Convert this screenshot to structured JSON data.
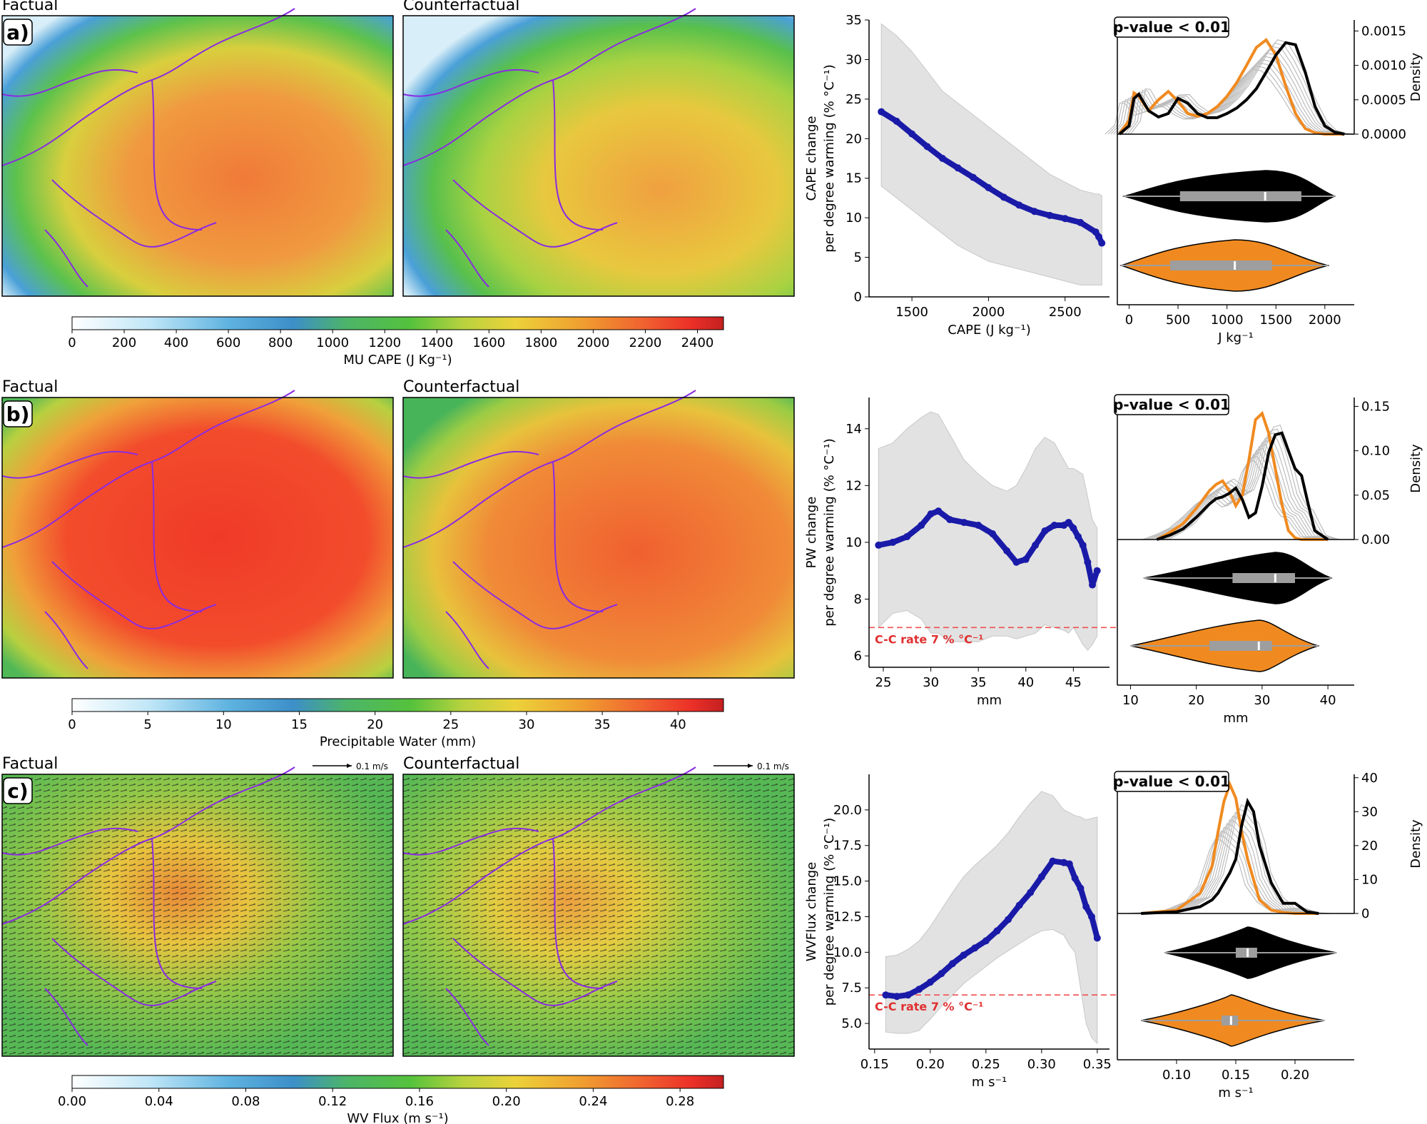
{
  "panels": [
    {
      "id": "a",
      "label": "a)",
      "map_titles": [
        "Factual",
        "Counterfactual"
      ],
      "colorbar": {
        "label": "MU CAPE (J Kg⁻¹)",
        "ticks": [
          "0",
          "200",
          "400",
          "600",
          "800",
          "1000",
          "1200",
          "1400",
          "1600",
          "1800",
          "2000",
          "2200",
          "2400"
        ],
        "range": [
          0,
          2500
        ]
      },
      "line_chart": {
        "type": "scatter",
        "ylabel_1": "CAPE change",
        "ylabel_2": "per degree warming (% °C⁻¹)",
        "xlabel": "CAPE (J kg⁻¹)",
        "xticks": [
          "1500",
          "2000",
          "2500"
        ],
        "yticks": [
          "0",
          "5",
          "10",
          "15",
          "20",
          "25",
          "30",
          "35"
        ],
        "xlim": [
          1220,
          2790
        ],
        "ylim": [
          0,
          35
        ],
        "x": [
          1300,
          1400,
          1500,
          1600,
          1700,
          1800,
          1900,
          2000,
          2100,
          2200,
          2300,
          2400,
          2500,
          2600,
          2700,
          2720,
          2740
        ],
        "y": [
          23.4,
          22.2,
          20.6,
          19.0,
          17.5,
          16.3,
          15.1,
          13.8,
          12.6,
          11.6,
          10.8,
          10.3,
          9.9,
          9.4,
          8.2,
          7.6,
          6.8
        ],
        "band_upper": [
          34.5,
          33.0,
          31.0,
          28.5,
          26.0,
          24.5,
          23.0,
          21.5,
          20.0,
          18.5,
          17.0,
          15.5,
          14.5,
          13.5,
          13.0,
          13.0,
          12.8
        ],
        "band_lower": [
          14.0,
          12.5,
          11.0,
          9.5,
          8.0,
          6.5,
          5.5,
          4.5,
          4.0,
          3.5,
          3.0,
          2.5,
          2.0,
          1.5,
          1.5,
          1.5,
          1.5
        ],
        "cc_line": null,
        "cc_label": ""
      },
      "density_chart": {
        "type": "line",
        "pvalue_label": "p-value < 0.01",
        "ylabel": "Density",
        "xlabel": "J kg⁻¹",
        "xticks": [
          "0",
          "500",
          "1000",
          "1500",
          "2000"
        ],
        "yticks": [
          "0.0000",
          "0.0005",
          "0.0010",
          "0.0015"
        ],
        "xlim": [
          -120,
          2300
        ],
        "ylim": [
          0,
          0.00166
        ],
        "x": [
          -100,
          0,
          50,
          100,
          200,
          300,
          400,
          500,
          600,
          700,
          800,
          900,
          1000,
          1100,
          1200,
          1300,
          1400,
          1500,
          1600,
          1700,
          1800,
          1900,
          2000,
          2100,
          2200
        ],
        "series": [
          {
            "name": "",
            "color": "#000000",
            "values": [
              0,
              0.00012,
              0.00052,
              0.00058,
              0.00034,
              0.00025,
              0.0003,
              0.00052,
              0.00045,
              0.0003,
              0.00024,
              0.00024,
              0.0003,
              0.00038,
              0.0005,
              0.00066,
              0.0009,
              0.00115,
              0.00133,
              0.0013,
              0.0009,
              0.0004,
              0.00012,
              3e-05,
              0.0
            ]
          },
          {
            "name": "",
            "color": "#f08a20",
            "values": [
              0,
              0.0002,
              0.0006,
              0.00055,
              0.00034,
              0.0005,
              0.00062,
              0.00048,
              0.0003,
              0.00026,
              0.0003,
              0.0004,
              0.00055,
              0.00075,
              0.001,
              0.00126,
              0.00137,
              0.00115,
              0.0007,
              0.0003,
              8e-05,
              2e-05,
              0.0,
              0.0,
              0.0
            ]
          }
        ],
        "violins": [
          {
            "color": "#000000",
            "min": -50,
            "q1": 520,
            "median": 1390,
            "q3": 1760,
            "max": 2100
          },
          {
            "color": "#f08a20",
            "min": -80,
            "q1": 420,
            "median": 1080,
            "q3": 1460,
            "max": 2030
          }
        ]
      }
    },
    {
      "id": "b",
      "label": "b)",
      "map_titles": [
        "Factual",
        "Counterfactual"
      ],
      "colorbar": {
        "label": "Precipitable Water (mm)",
        "ticks": [
          "0",
          "5",
          "10",
          "15",
          "20",
          "25",
          "30",
          "35",
          "40"
        ],
        "range": [
          0,
          43
        ]
      },
      "line_chart": {
        "type": "scatter",
        "ylabel_1": "PW change",
        "ylabel_2": "per degree warming (% °C⁻¹)",
        "xlabel": "mm",
        "xticks": [
          "25",
          "30",
          "35",
          "40",
          "45"
        ],
        "yticks": [
          "6",
          "8",
          "10",
          "12",
          "14"
        ],
        "xlim": [
          23.5,
          48.8
        ],
        "ylim": [
          5.6,
          15.1
        ],
        "x": [
          24.5,
          26,
          27.5,
          29,
          30,
          30.8,
          32,
          33.5,
          35,
          36.5,
          38,
          39,
          40,
          41,
          42,
          43,
          44,
          44.5,
          45,
          45.5,
          46,
          46.5,
          47,
          47.5
        ],
        "y": [
          9.9,
          10.0,
          10.2,
          10.6,
          11.0,
          11.1,
          10.8,
          10.7,
          10.6,
          10.3,
          9.7,
          9.3,
          9.4,
          9.9,
          10.4,
          10.6,
          10.6,
          10.7,
          10.5,
          10.2,
          9.9,
          9.3,
          8.5,
          9.0
        ],
        "band_upper": [
          13.3,
          13.5,
          14.0,
          14.4,
          14.6,
          14.5,
          13.8,
          12.9,
          12.4,
          12.0,
          11.8,
          12.0,
          12.6,
          13.3,
          13.7,
          13.5,
          12.9,
          12.6,
          12.6,
          12.5,
          12.4,
          11.6,
          10.8,
          10.5
        ],
        "band_lower": [
          7.0,
          7.5,
          7.6,
          7.3,
          6.8,
          6.8,
          6.5,
          6.5,
          6.5,
          6.7,
          6.7,
          6.6,
          6.7,
          6.8,
          7.1,
          7.0,
          6.9,
          6.8,
          7.0,
          6.7,
          6.4,
          6.2,
          6.4,
          6.7
        ],
        "cc_line": 7,
        "cc_label": "C-C rate 7 % °C⁻¹"
      },
      "density_chart": {
        "type": "line",
        "pvalue_label": "p-value < 0.01",
        "ylabel": "Density",
        "xlabel": "mm",
        "xticks": [
          "10",
          "20",
          "30",
          "40"
        ],
        "yticks": [
          "0.00",
          "0.05",
          "0.10",
          "0.15"
        ],
        "xlim": [
          8,
          44
        ],
        "ylim": [
          0,
          0.16
        ],
        "x": [
          14,
          16,
          18,
          20,
          22,
          23,
          24,
          25,
          26,
          27,
          28,
          29,
          30,
          31,
          32,
          33,
          34,
          35,
          36,
          37,
          38,
          40
        ],
        "series": [
          {
            "name": "",
            "color": "#000000",
            "values": [
              0,
              0.005,
              0.012,
              0.025,
              0.04,
              0.046,
              0.048,
              0.052,
              0.058,
              0.045,
              0.025,
              0.03,
              0.06,
              0.098,
              0.118,
              0.12,
              0.1,
              0.08,
              0.072,
              0.04,
              0.01,
              0.0
            ]
          },
          {
            "name": "",
            "color": "#f08a20",
            "values": [
              0,
              0.008,
              0.018,
              0.035,
              0.055,
              0.062,
              0.066,
              0.055,
              0.038,
              0.05,
              0.09,
              0.135,
              0.142,
              0.12,
              0.08,
              0.04,
              0.01,
              0.002,
              0.0,
              0.0,
              0.0,
              0.0
            ]
          }
        ],
        "violins": [
          {
            "color": "#000000",
            "min": 12,
            "q1": 25.5,
            "median": 32,
            "q3": 35,
            "max": 40.5
          },
          {
            "color": "#f08a20",
            "min": 10,
            "q1": 22,
            "median": 29.5,
            "q3": 31.5,
            "max": 38.5
          }
        ]
      }
    },
    {
      "id": "c",
      "label": "c)",
      "map_titles": [
        "Factual",
        "Counterfactual"
      ],
      "arrow_key": "0.1 m/s",
      "colorbar": {
        "label": "WV Flux (m s⁻¹)",
        "ticks": [
          "0.00",
          "0.04",
          "0.08",
          "0.12",
          "0.16",
          "0.20",
          "0.24",
          "0.28"
        ],
        "range": [
          0,
          0.3
        ]
      },
      "line_chart": {
        "type": "scatter",
        "ylabel_1": "WVFlux change",
        "ylabel_2": "per degree warming (% °C⁻¹)",
        "xlabel": "m s⁻¹",
        "xticks": [
          "0.15",
          "0.20",
          "0.25",
          "0.30",
          "0.35"
        ],
        "yticks": [
          "5.0",
          "7.5",
          "10.0",
          "12.5",
          "15.0",
          "17.5",
          "20.0"
        ],
        "xlim": [
          0.145,
          0.361
        ],
        "ylim": [
          3.2,
          22.5
        ],
        "x": [
          0.16,
          0.17,
          0.18,
          0.19,
          0.2,
          0.21,
          0.22,
          0.23,
          0.24,
          0.25,
          0.26,
          0.27,
          0.28,
          0.29,
          0.3,
          0.31,
          0.32,
          0.325,
          0.33,
          0.335,
          0.34,
          0.345,
          0.35
        ],
        "y": [
          7.0,
          6.9,
          7.0,
          7.4,
          7.9,
          8.5,
          9.2,
          9.8,
          10.3,
          10.8,
          11.5,
          12.3,
          13.3,
          14.2,
          15.3,
          16.4,
          16.3,
          16.2,
          15.2,
          14.5,
          13.2,
          12.5,
          11.0
        ],
        "band_upper": [
          9.7,
          9.8,
          10.2,
          10.8,
          11.8,
          13.0,
          14.2,
          15.3,
          16.1,
          16.8,
          17.5,
          18.4,
          19.5,
          20.5,
          21.3,
          21.0,
          20.0,
          19.8,
          19.6,
          19.5,
          19.3,
          19.4,
          19.5
        ],
        "band_lower": [
          4.4,
          4.3,
          4.3,
          4.5,
          5.3,
          6.2,
          7.0,
          7.8,
          8.4,
          9.0,
          9.6,
          10.1,
          10.6,
          11.1,
          11.5,
          11.6,
          11.2,
          10.5,
          10.0,
          7.5,
          5.0,
          4.0,
          3.6
        ],
        "cc_line": 7,
        "cc_label": "C-C rate 7 % °C⁻¹"
      },
      "density_chart": {
        "type": "line",
        "pvalue_label": "p-value < 0.01",
        "ylabel": "Density",
        "xlabel": "m s⁻¹",
        "xticks": [
          "0.10",
          "0.15",
          "0.20"
        ],
        "yticks": [
          "0",
          "10",
          "20",
          "30",
          "40"
        ],
        "xlim": [
          0.05,
          0.25
        ],
        "ylim": [
          0,
          41
        ],
        "x": [
          0.07,
          0.1,
          0.12,
          0.13,
          0.135,
          0.14,
          0.145,
          0.15,
          0.155,
          0.16,
          0.165,
          0.17,
          0.18,
          0.19,
          0.2,
          0.21,
          0.22
        ],
        "series": [
          {
            "name": "",
            "color": "#000000",
            "values": [
              0,
              0.5,
              2,
              4,
              6,
              9,
              12,
              16,
              26,
              33,
              30,
              20,
              9,
              3,
              3,
              0.5,
              0
            ]
          },
          {
            "name": "",
            "color": "#f08a20",
            "values": [
              0,
              1,
              6,
              14,
              24,
              33,
              38,
              34,
              24,
              16,
              10,
              4,
              1,
              0.3,
              0,
              0,
              0
            ]
          }
        ],
        "violins": [
          {
            "color": "#000000",
            "min": 0.09,
            "q1": 0.15,
            "median": 0.16,
            "q3": 0.168,
            "max": 0.235
          },
          {
            "color": "#f08a20",
            "min": 0.07,
            "q1": 0.138,
            "median": 0.146,
            "q3": 0.152,
            "max": 0.225
          }
        ]
      }
    }
  ]
}
